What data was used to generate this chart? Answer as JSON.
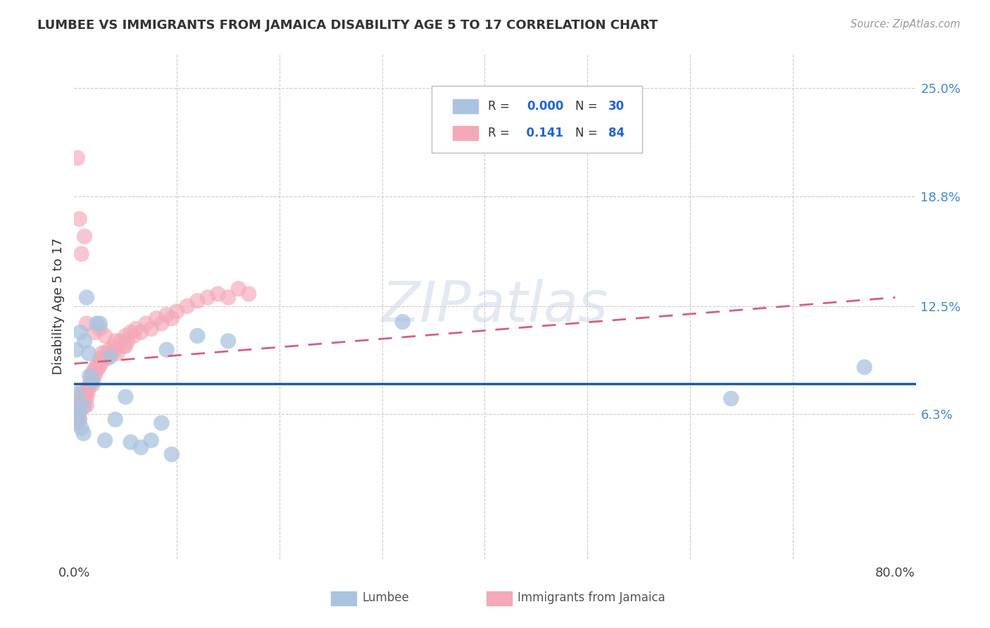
{
  "title": "LUMBEE VS IMMIGRANTS FROM JAMAICA DISABILITY AGE 5 TO 17 CORRELATION CHART",
  "source": "Source: ZipAtlas.com",
  "ylabel": "Disability Age 5 to 17",
  "xlim": [
    0.0,
    0.82
  ],
  "ylim": [
    -0.02,
    0.27
  ],
  "xtick_positions": [
    0.0,
    0.1,
    0.2,
    0.3,
    0.4,
    0.5,
    0.6,
    0.7,
    0.8
  ],
  "xticklabels": [
    "0.0%",
    "",
    "",
    "",
    "",
    "",
    "",
    "",
    "80.0%"
  ],
  "ytick_positions": [
    0.063,
    0.125,
    0.188,
    0.25
  ],
  "ytick_labels": [
    "6.3%",
    "12.5%",
    "18.8%",
    "25.0%"
  ],
  "lumbee_color": "#aac4e0",
  "jamaica_color": "#f4a8b8",
  "lumbee_trend_color": "#1a5aaa",
  "jamaica_trend_color": "#d46080",
  "watermark": "ZIPatlas",
  "watermark_color": "#ccd8e8",
  "lumbee_x": [
    0.002,
    0.003,
    0.004,
    0.005,
    0.006,
    0.007,
    0.008,
    0.009,
    0.01,
    0.012,
    0.015,
    0.018,
    0.022,
    0.025,
    0.03,
    0.035,
    0.04,
    0.05,
    0.055,
    0.065,
    0.075,
    0.085,
    0.09,
    0.095,
    0.12,
    0.15,
    0.32,
    0.64,
    0.77,
    0.014
  ],
  "lumbee_y": [
    0.1,
    0.075,
    0.065,
    0.06,
    0.11,
    0.055,
    0.068,
    0.052,
    0.105,
    0.13,
    0.085,
    0.082,
    0.115,
    0.115,
    0.048,
    0.096,
    0.06,
    0.073,
    0.047,
    0.044,
    0.048,
    0.058,
    0.1,
    0.04,
    0.108,
    0.105,
    0.116,
    0.072,
    0.09,
    0.098
  ],
  "jamaica_x": [
    0.001,
    0.001,
    0.001,
    0.001,
    0.002,
    0.002,
    0.002,
    0.002,
    0.003,
    0.003,
    0.003,
    0.004,
    0.004,
    0.005,
    0.005,
    0.005,
    0.006,
    0.006,
    0.007,
    0.007,
    0.008,
    0.008,
    0.009,
    0.009,
    0.01,
    0.01,
    0.011,
    0.012,
    0.012,
    0.013,
    0.014,
    0.015,
    0.016,
    0.017,
    0.018,
    0.019,
    0.02,
    0.021,
    0.022,
    0.023,
    0.024,
    0.025,
    0.026,
    0.027,
    0.028,
    0.03,
    0.032,
    0.034,
    0.036,
    0.038,
    0.04,
    0.042,
    0.045,
    0.048,
    0.05,
    0.052,
    0.055,
    0.058,
    0.06,
    0.065,
    0.07,
    0.075,
    0.08,
    0.085,
    0.09,
    0.095,
    0.1,
    0.11,
    0.12,
    0.13,
    0.14,
    0.15,
    0.16,
    0.17,
    0.012,
    0.02,
    0.025,
    0.03,
    0.04,
    0.05,
    0.003,
    0.005,
    0.007,
    0.01
  ],
  "jamaica_y": [
    0.06,
    0.065,
    0.07,
    0.058,
    0.06,
    0.065,
    0.058,
    0.062,
    0.06,
    0.065,
    0.068,
    0.062,
    0.07,
    0.065,
    0.06,
    0.068,
    0.072,
    0.065,
    0.07,
    0.075,
    0.068,
    0.072,
    0.075,
    0.07,
    0.072,
    0.068,
    0.075,
    0.072,
    0.068,
    0.075,
    0.078,
    0.08,
    0.082,
    0.085,
    0.08,
    0.088,
    0.085,
    0.09,
    0.088,
    0.092,
    0.09,
    0.095,
    0.092,
    0.098,
    0.095,
    0.098,
    0.095,
    0.1,
    0.098,
    0.102,
    0.1,
    0.098,
    0.105,
    0.102,
    0.108,
    0.105,
    0.11,
    0.108,
    0.112,
    0.11,
    0.115,
    0.112,
    0.118,
    0.115,
    0.12,
    0.118,
    0.122,
    0.125,
    0.128,
    0.13,
    0.132,
    0.13,
    0.135,
    0.132,
    0.115,
    0.11,
    0.112,
    0.108,
    0.105,
    0.102,
    0.21,
    0.175,
    0.155,
    0.165
  ],
  "jamaica_trend_x0": 0.0,
  "jamaica_trend_x1": 0.8,
  "jamaica_trend_y0": 0.092,
  "jamaica_trend_y1": 0.13
}
